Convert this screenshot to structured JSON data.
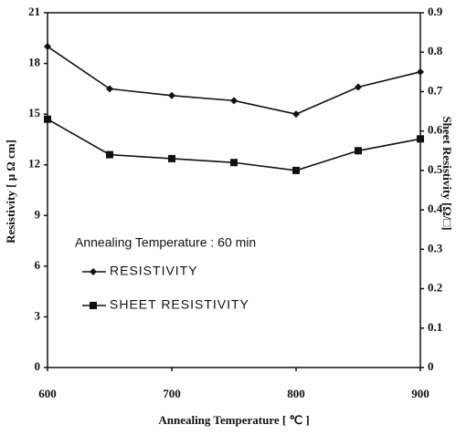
{
  "chart_data": {
    "type": "line",
    "x_label": "Annealing Temperature [ ℃ ]",
    "y_label": "Resistivity [ μ Ω cm]",
    "y2_label": "Sheet Resistivity [Ω/□]",
    "annotation": "Annealing Temperature : 60 min",
    "x": [
      600,
      650,
      700,
      750,
      800,
      850,
      900
    ],
    "xlim": [
      600,
      900
    ],
    "xticks": [
      600,
      700,
      800,
      900
    ],
    "ylim": [
      0,
      21
    ],
    "yticks": [
      0,
      3,
      6,
      9,
      12,
      15,
      18,
      21
    ],
    "y2lim": [
      0,
      0.9
    ],
    "y2ticks": [
      0,
      0.1,
      0.2,
      0.3,
      0.4,
      0.5,
      0.6,
      0.7,
      0.8,
      0.9
    ],
    "series": [
      {
        "name": "RESISTIVITY",
        "color": "#111111",
        "marker": "diamond",
        "values": [
          19.0,
          16.5,
          16.1,
          15.8,
          15.0,
          16.6,
          17.5
        ]
      },
      {
        "name": "SHEET RESISTIVITY",
        "color": "#111111",
        "marker": "square",
        "axis": "y2",
        "values": [
          0.63,
          0.54,
          0.53,
          0.52,
          0.5,
          0.55,
          0.58
        ]
      }
    ]
  }
}
